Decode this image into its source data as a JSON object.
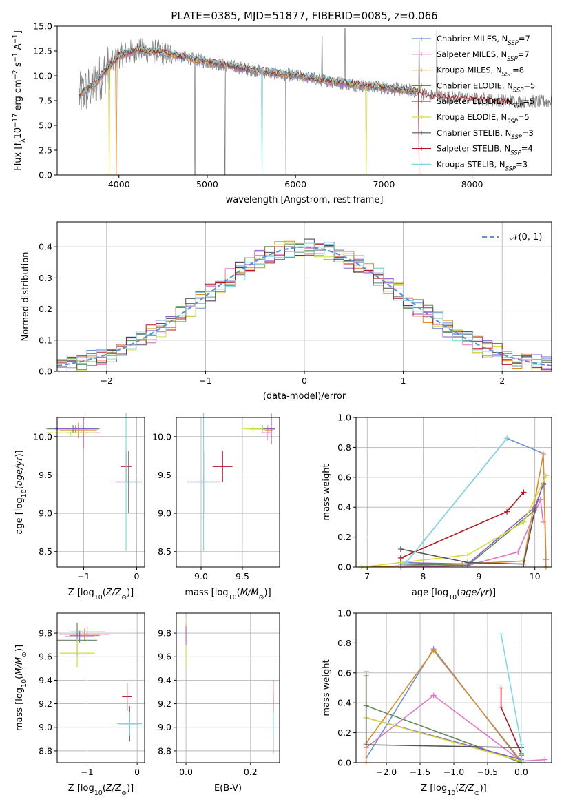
{
  "colors": {
    "chabrier_miles": "#6a8fd6",
    "salpeter_miles": "#e377c2",
    "kroupa_miles": "#e08a2a",
    "chabrier_elodie": "#5d8a5a",
    "salpeter_elodie": "#8e5bd0",
    "kroupa_elodie": "#d2de3c",
    "chabrier_stelib": "#555555",
    "salpeter_stelib": "#b01820",
    "kroupa_stelib": "#7fd8e0",
    "data": "#808080",
    "normal": "#5b8fd8"
  },
  "chart_data": [
    {
      "id": "spectrum",
      "type": "line",
      "title": "PLATE=0385, MJD=51877, FIBERID=0085, z=0.066",
      "xlabel": "wavelength [Angstrom, rest frame]",
      "ylabel": "Flux [f_λ 10^-17 erg cm^-2 s^-1 A^-1]",
      "xlim": [
        3300,
        8900
      ],
      "ylim": [
        0,
        15
      ],
      "xticks": [
        "4000",
        "5000",
        "6000",
        "7000",
        "8000"
      ],
      "yticks": [
        "0.0",
        "2.5",
        "5.0",
        "7.5",
        "10.0",
        "12.5",
        "15.0"
      ],
      "legend_position": "top-right",
      "legend": [
        {
          "text": "Chabrier MILES, N",
          "sub": "SSP",
          "suffix": "=7",
          "color_key": "chabrier_miles"
        },
        {
          "text": "Salpeter MILES, N",
          "sub": "SSP",
          "suffix": "=7",
          "color_key": "salpeter_miles"
        },
        {
          "text": "Kroupa MILES, N",
          "sub": "SSP",
          "suffix": "=8",
          "color_key": "kroupa_miles"
        },
        {
          "text": "Chabrier ELODIE, N",
          "sub": "SSP",
          "suffix": "=5",
          "color_key": "chabrier_elodie"
        },
        {
          "text": "Salpeter ELODIE, N",
          "sub": "SSP",
          "suffix": "=5",
          "color_key": "salpeter_elodie"
        },
        {
          "text": "Kroupa ELODIE, N",
          "sub": "SSP",
          "suffix": "=5",
          "color_key": "kroupa_elodie"
        },
        {
          "text": "Chabrier STELIB, N",
          "sub": "SSP",
          "suffix": "=3",
          "color_key": "chabrier_stelib"
        },
        {
          "text": "Salpeter STELIB, N",
          "sub": "SSP",
          "suffix": "=4",
          "color_key": "salpeter_stelib"
        },
        {
          "text": "Kroupa STELIB, N",
          "sub": "SSP",
          "suffix": "=3",
          "color_key": "kroupa_stelib"
        }
      ],
      "continuum": [
        [
          3550,
          8.0
        ],
        [
          3700,
          9.0
        ],
        [
          3900,
          11.0
        ],
        [
          4000,
          12.0
        ],
        [
          4200,
          12.6
        ],
        [
          4500,
          12.3
        ],
        [
          5000,
          11.4
        ],
        [
          5500,
          10.6
        ],
        [
          6000,
          10.0
        ],
        [
          6500,
          9.3
        ],
        [
          7000,
          8.8
        ],
        [
          7400,
          8.4
        ],
        [
          7500,
          8.0
        ],
        [
          8000,
          7.7
        ],
        [
          8500,
          7.4
        ]
      ],
      "data_range": [
        3550,
        8900
      ],
      "model_range": [
        3550,
        7400
      ],
      "data_spikes": [
        [
          4860,
          0
        ],
        [
          5200,
          0
        ],
        [
          5890,
          0
        ],
        [
          6300,
          14
        ],
        [
          6560,
          14.8
        ],
        [
          7400,
          13.5
        ],
        [
          7600,
          14.5
        ]
      ],
      "model_dips": [
        [
          3890,
          0,
          "kroupa_elodie"
        ],
        [
          3970,
          0,
          "kroupa_miles"
        ],
        [
          5620,
          0,
          "kroupa_stelib"
        ],
        [
          6800,
          0,
          "kroupa_elodie"
        ],
        [
          7400,
          0,
          "salpeter_stelib"
        ]
      ]
    },
    {
      "id": "residuals",
      "type": "bar",
      "xlabel": "(data-model)/error",
      "ylabel": "Normed distribution",
      "xlim": [
        -2.5,
        2.5
      ],
      "ylim": [
        0,
        0.48
      ],
      "xticks": [
        "−2",
        "−1",
        "0",
        "1",
        "2"
      ],
      "yticks": [
        "0.0",
        "0.1",
        "0.2",
        "0.3",
        "0.4"
      ],
      "bin_width": 0.1,
      "legend": "𝒩(0, 1)",
      "legend_position": "top-right"
    },
    {
      "id": "age-vs-z",
      "type": "scatter",
      "xlabel": "Z [log10(Z/Z⊙)]",
      "ylabel": "age [log10(age/yr)]",
      "xlim": [
        -1.5,
        0.15
      ],
      "ylim": [
        8.3,
        10.25
      ],
      "xticks": [
        "−1",
        "0"
      ],
      "yticks": [
        "8.5",
        "9.0",
        "9.5",
        "10.0"
      ],
      "points": [
        {
          "x": -1.05,
          "y": 10.1,
          "dx": 0.3,
          "dy": 0.05,
          "color_key": "chabrier_miles"
        },
        {
          "x": -1.0,
          "y": 10.05,
          "dx": 0.3,
          "dy": 0.2,
          "color_key": "salpeter_miles"
        },
        {
          "x": -1.1,
          "y": 10.08,
          "dx": 0.35,
          "dy": 0.1,
          "color_key": "kroupa_miles"
        },
        {
          "x": -1.2,
          "y": 10.1,
          "dx": 0.5,
          "dy": 0.05,
          "color_key": "chabrier_elodie"
        },
        {
          "x": -1.15,
          "y": 10.1,
          "dx": 0.4,
          "dy": 0.05,
          "color_key": "salpeter_elodie"
        },
        {
          "x": -1.25,
          "y": 10.05,
          "dx": 0.45,
          "dy": 0.05,
          "color_key": "kroupa_elodie"
        },
        {
          "x": -0.15,
          "y": 9.41,
          "dx": 0.25,
          "dy": 0.4,
          "color_key": "chabrier_stelib"
        },
        {
          "x": -0.2,
          "y": 9.61,
          "dx": 0.1,
          "dy": 0.2,
          "color_key": "salpeter_stelib"
        },
        {
          "x": -0.2,
          "y": 9.41,
          "dx": 0.2,
          "dy": 0.9,
          "color_key": "kroupa_stelib"
        }
      ]
    },
    {
      "id": "age-vs-mass",
      "type": "scatter",
      "xlabel": "mass [log10(M/M⊙)]",
      "xlim": [
        8.7,
        9.95
      ],
      "ylim": [
        8.3,
        10.25
      ],
      "xticks": [
        "9.0",
        "9.5"
      ],
      "yticks": [
        "8.5",
        "9.0",
        "9.5",
        "10.0"
      ],
      "points": [
        {
          "x": 9.82,
          "y": 10.1,
          "dx": 0.08,
          "dy": 0.05,
          "color_key": "chabrier_miles"
        },
        {
          "x": 9.8,
          "y": 10.05,
          "dx": 0.05,
          "dy": 0.1,
          "color_key": "salpeter_miles"
        },
        {
          "x": 9.82,
          "y": 10.08,
          "dx": 0.05,
          "dy": 0.05,
          "color_key": "kroupa_miles"
        },
        {
          "x": 9.74,
          "y": 10.1,
          "dx": 0.15,
          "dy": 0.05,
          "color_key": "chabrier_elodie"
        },
        {
          "x": 9.85,
          "y": 10.1,
          "dx": 0.05,
          "dy": 0.2,
          "color_key": "salpeter_elodie"
        },
        {
          "x": 9.63,
          "y": 10.1,
          "dx": 0.12,
          "dy": 0.05,
          "color_key": "kroupa_elodie"
        },
        {
          "x": 9.03,
          "y": 9.41,
          "dx": 0.2,
          "dy": 0.4,
          "color_key": "chabrier_stelib"
        },
        {
          "x": 9.26,
          "y": 9.61,
          "dx": 0.12,
          "dy": 0.2,
          "color_key": "salpeter_stelib"
        },
        {
          "x": 9.03,
          "y": 9.41,
          "dx": 0.15,
          "dy": 0.9,
          "color_key": "kroupa_stelib"
        }
      ]
    },
    {
      "id": "mass-weight-vs-age",
      "type": "line",
      "xlabel": "age [log10(age/yr)]",
      "ylabel": "mass weight",
      "xlim": [
        6.8,
        10.3
      ],
      "ylim": [
        0,
        1
      ],
      "xticks": [
        "7",
        "8",
        "9",
        "10"
      ],
      "yticks": [
        "0.0",
        "0.2",
        "0.4",
        "0.6",
        "0.8",
        "1.0"
      ],
      "series": [
        {
          "color_key": "chabrier_miles",
          "pts": [
            [
              7.7,
              0.03
            ],
            [
              9.5,
              0.86
            ],
            [
              10.15,
              0.76
            ],
            [
              10.2,
              0.05
            ]
          ]
        },
        {
          "color_key": "salpeter_miles",
          "pts": [
            [
              7.6,
              0.0
            ],
            [
              8.8,
              0.01
            ],
            [
              9.7,
              0.1
            ],
            [
              10.1,
              0.45
            ],
            [
              10.15,
              0.3
            ]
          ]
        },
        {
          "color_key": "kroupa_miles",
          "pts": [
            [
              6.9,
              0.0
            ],
            [
              8.7,
              0.02
            ],
            [
              9.8,
              0.04
            ],
            [
              10.15,
              0.75
            ],
            [
              10.2,
              0.0
            ]
          ]
        },
        {
          "color_key": "chabrier_elodie",
          "pts": [
            [
              7.6,
              0.02
            ],
            [
              8.8,
              0.01
            ],
            [
              10.0,
              0.38
            ],
            [
              10.15,
              0.56
            ]
          ]
        },
        {
          "color_key": "salpeter_elodie",
          "pts": [
            [
              7.6,
              0.03
            ],
            [
              8.8,
              0.02
            ],
            [
              10.0,
              0.4
            ],
            [
              10.15,
              0.55
            ]
          ]
        },
        {
          "color_key": "kroupa_elodie",
          "pts": [
            [
              6.9,
              0.0
            ],
            [
              8.8,
              0.08
            ],
            [
              9.8,
              0.3
            ],
            [
              10.2,
              0.61
            ]
          ]
        },
        {
          "color_key": "chabrier_stelib",
          "pts": [
            [
              7.6,
              0.12
            ],
            [
              8.8,
              0.03
            ],
            [
              9.8,
              0.02
            ],
            [
              10.0,
              0.38
            ]
          ]
        },
        {
          "color_key": "salpeter_stelib",
          "pts": [
            [
              7.6,
              0.06
            ],
            [
              9.5,
              0.37
            ],
            [
              9.8,
              0.5
            ]
          ]
        },
        {
          "color_key": "kroupa_stelib",
          "pts": [
            [
              7.7,
              0.03
            ],
            [
              9.5,
              0.86
            ]
          ]
        }
      ]
    },
    {
      "id": "mass-vs-z",
      "type": "scatter",
      "xlabel": "Z [log10(Z/Z⊙)]",
      "ylabel": "mass [log10(M/M⊙)]",
      "xlim": [
        -1.6,
        0.15
      ],
      "ylim": [
        8.7,
        9.97
      ],
      "xticks": [
        "−1",
        "0"
      ],
      "yticks": [
        "8.8",
        "9.0",
        "9.2",
        "9.4",
        "9.6",
        "9.8"
      ],
      "points": [
        {
          "x": -1.0,
          "y": 9.81,
          "dx": 0.35,
          "dy": 0.05,
          "color_key": "chabrier_miles"
        },
        {
          "x": -1.05,
          "y": 9.79,
          "dx": 0.5,
          "dy": 0.05,
          "color_key": "salpeter_miles"
        },
        {
          "x": -1.05,
          "y": 9.78,
          "dx": 0.3,
          "dy": 0.05,
          "color_key": "kroupa_miles"
        },
        {
          "x": -1.2,
          "y": 9.74,
          "dx": 0.4,
          "dy": 0.15,
          "color_key": "chabrier_elodie"
        },
        {
          "x": -1.15,
          "y": 9.77,
          "dx": 0.3,
          "dy": 0.05,
          "color_key": "salpeter_elodie"
        },
        {
          "x": -1.2,
          "y": 9.63,
          "dx": 0.35,
          "dy": 0.12,
          "color_key": "kroupa_elodie"
        },
        {
          "x": -0.15,
          "y": 9.03,
          "dx": 0.2,
          "dy": 0.15,
          "color_key": "chabrier_stelib"
        },
        {
          "x": -0.2,
          "y": 9.26,
          "dx": 0.1,
          "dy": 0.12,
          "color_key": "salpeter_stelib"
        },
        {
          "x": -0.15,
          "y": 9.03,
          "dx": 0.25,
          "dy": 0.1,
          "color_key": "kroupa_stelib"
        }
      ]
    },
    {
      "id": "mass-vs-ebv",
      "type": "scatter",
      "xlabel": "E(B-V)",
      "xlim": [
        -0.03,
        0.29
      ],
      "ylim": [
        8.7,
        9.97
      ],
      "xticks": [
        "0.0",
        "0.2"
      ],
      "yticks": [
        "8.8",
        "9.0",
        "9.2",
        "9.4",
        "9.6",
        "9.8"
      ],
      "points": [
        {
          "x": 0.0,
          "y": 9.8,
          "dx": 0,
          "dy": 0.08,
          "color_key": "salpeter_elodie"
        },
        {
          "x": 0.0,
          "y": 9.7,
          "dx": 0,
          "dy": 0.2,
          "color_key": "kroupa_elodie"
        },
        {
          "x": 0.0,
          "y": 9.78,
          "dx": 0,
          "dy": 0.08,
          "color_key": "salpeter_miles"
        },
        {
          "x": 0.27,
          "y": 9.26,
          "dx": 0,
          "dy": 0.14,
          "color_key": "salpeter_stelib"
        },
        {
          "x": 0.27,
          "y": 9.03,
          "dx": 0,
          "dy": 0.25,
          "color_key": "chabrier_stelib"
        },
        {
          "x": 0.27,
          "y": 9.03,
          "dx": 0,
          "dy": 0.1,
          "color_key": "kroupa_stelib"
        }
      ]
    },
    {
      "id": "mass-weight-vs-z",
      "type": "line",
      "xlabel": "Z [log10(Z/Z⊙)]",
      "ylabel": "mass weight",
      "xlim": [
        -2.45,
        0.45
      ],
      "ylim": [
        0,
        1
      ],
      "xticks": [
        "−2.0",
        "−1.5",
        "−1.0",
        "−0.5",
        "0.0"
      ],
      "yticks": [
        "0.0",
        "0.2",
        "0.4",
        "0.6",
        "0.8",
        "1.0"
      ],
      "series": [
        {
          "color_key": "chabrier_miles",
          "pts": [
            [
              -2.3,
              0.03
            ],
            [
              -1.3,
              0.76
            ],
            [
              0.0,
              0.0
            ],
            [
              0.0,
              0.05
            ]
          ]
        },
        {
          "color_key": "salpeter_miles",
          "pts": [
            [
              -2.3,
              0.1
            ],
            [
              -1.3,
              0.45
            ],
            [
              0.0,
              0.01
            ],
            [
              0.35,
              0.02
            ]
          ]
        },
        {
          "color_key": "kroupa_miles",
          "pts": [
            [
              -2.3,
              0.0
            ],
            [
              -2.3,
              0.13
            ],
            [
              -1.3,
              0.75
            ],
            [
              0.0,
              0.01
            ]
          ]
        },
        {
          "color_key": "chabrier_elodie",
          "pts": [
            [
              -2.3,
              0.38
            ],
            [
              0.0,
              0.0
            ],
            [
              0.0,
              0.05
            ]
          ]
        },
        {
          "color_key": "salpeter_elodie",
          "pts": [
            [
              -2.3,
              0.3
            ],
            [
              0.0,
              0.02
            ]
          ]
        },
        {
          "color_key": "kroupa_elodie",
          "pts": [
            [
              -2.3,
              0.61
            ],
            [
              -2.3,
              0.3
            ],
            [
              0.0,
              0.01
            ]
          ]
        },
        {
          "color_key": "chabrier_stelib",
          "pts": [
            [
              -2.3,
              0.58
            ],
            [
              -2.3,
              0.12
            ],
            [
              0.0,
              0.1
            ]
          ]
        },
        {
          "color_key": "salpeter_stelib",
          "pts": [
            [
              -0.3,
              0.5
            ],
            [
              -0.3,
              0.37
            ],
            [
              0.0,
              0.06
            ]
          ]
        },
        {
          "color_key": "kroupa_stelib",
          "pts": [
            [
              -0.3,
              0.86
            ],
            [
              0.0,
              0.12
            ],
            [
              0.0,
              0.0
            ]
          ]
        }
      ]
    }
  ]
}
